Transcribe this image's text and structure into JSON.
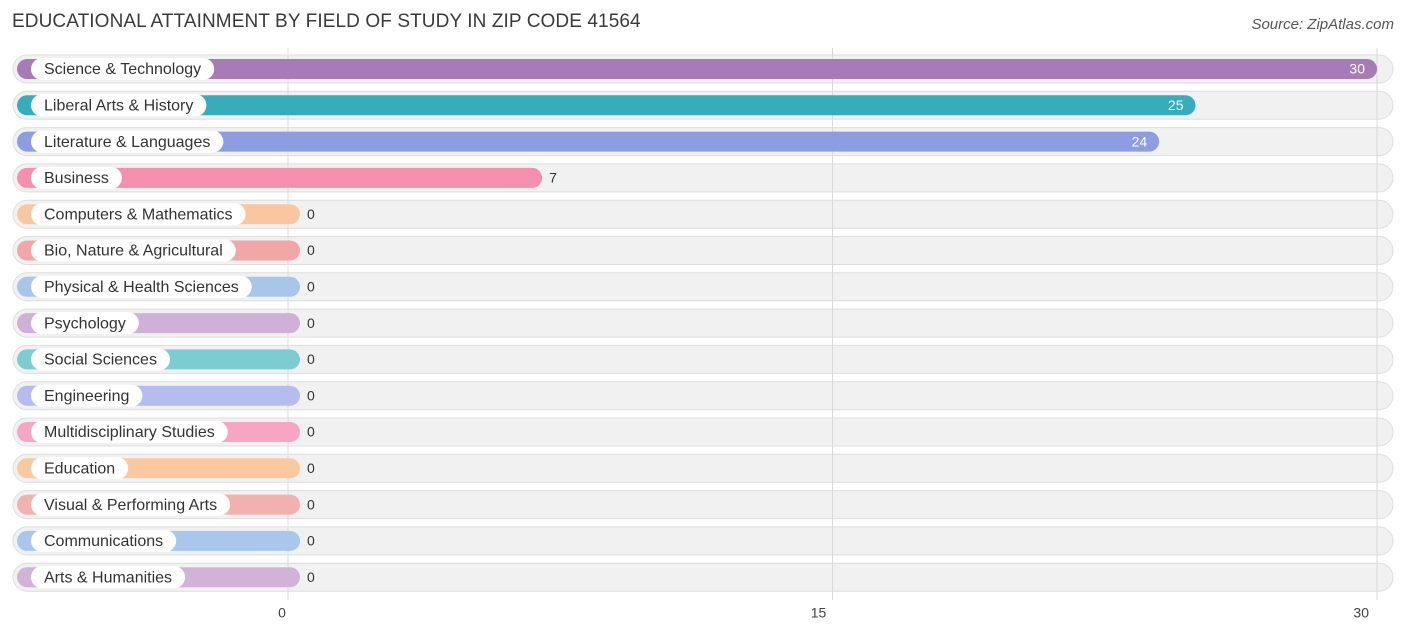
{
  "chart_data": {
    "type": "bar",
    "orientation": "horizontal",
    "title": "EDUCATIONAL ATTAINMENT BY FIELD OF STUDY IN ZIP CODE 41564",
    "source": "Source: ZipAtlas.com",
    "xlabel": "",
    "ylabel": "",
    "xlim": [
      0,
      30
    ],
    "ticks": [
      0,
      15,
      30
    ],
    "categories": [
      "Science & Technology",
      "Liberal Arts & History",
      "Literature & Languages",
      "Business",
      "Computers & Mathematics",
      "Bio, Nature & Agricultural",
      "Physical & Health Sciences",
      "Psychology",
      "Social Sciences",
      "Engineering",
      "Multidisciplinary Studies",
      "Education",
      "Visual & Performing Arts",
      "Communications",
      "Arts & Humanities"
    ],
    "values": [
      30,
      25,
      24,
      7,
      0,
      0,
      0,
      0,
      0,
      0,
      0,
      0,
      0,
      0,
      0
    ],
    "colors": [
      "#a77bb6",
      "#35adbb",
      "#8d9de0",
      "#f48fb0",
      "#f9c79f",
      "#efa8a7",
      "#a8c6ea",
      "#cfb0d6",
      "#7ccdd1",
      "#b4bdee",
      "#f6a6c3",
      "#fbc99f",
      "#f1b1ae",
      "#a9c7ec",
      "#d2b3d8"
    ],
    "grid": true
  }
}
